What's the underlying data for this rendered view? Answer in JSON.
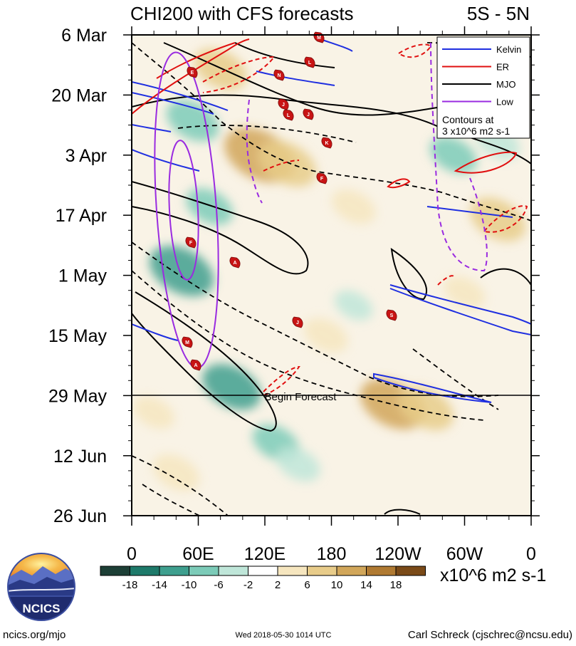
{
  "chart_data": {
    "type": "heatmap",
    "title": "CHI200 with CFS forecasts",
    "region": "5S - 5N",
    "x_axis": {
      "ticks": [
        "0",
        "60E",
        "120E",
        "180",
        "120W",
        "60W",
        "0"
      ],
      "values_deg_east": [
        0,
        60,
        120,
        180,
        240,
        300,
        360
      ]
    },
    "y_axis": {
      "ticks": [
        "6 Mar",
        "20 Mar",
        "3 Apr",
        "17 Apr",
        "1 May",
        "15 May",
        "29 May",
        "12 Jun",
        "26 Jun"
      ],
      "range": [
        "6 Mar",
        "26 Jun"
      ]
    },
    "forecast_line": {
      "label": "Begin Forecast",
      "date": "29 May"
    },
    "legend": {
      "placement": "top-right",
      "entries": [
        {
          "name": "Kelvin",
          "color": "#1f2fe0"
        },
        {
          "name": "ER",
          "color": "#e01010"
        },
        {
          "name": "MJO",
          "color": "#000000"
        },
        {
          "name": "Low",
          "color": "#9a2be0"
        }
      ],
      "note_line1": "Contours at",
      "note_line2": "3 x10^6 m2 s-1"
    },
    "colorbar": {
      "labels": [
        "-18",
        "-14",
        "-10",
        "-6",
        "-2",
        "2",
        "6",
        "10",
        "14",
        "18"
      ],
      "colors": [
        "#1d3f36",
        "#1e7a6a",
        "#3e9f8e",
        "#7ccbb8",
        "#bfe6d9",
        "#ffffff",
        "#f6e6bf",
        "#e8cc8a",
        "#d1a65a",
        "#b07a32",
        "#7a4a18"
      ],
      "units": "x10^6 m2 s-1"
    },
    "storm_labels": [
      "E",
      "M",
      "L",
      "N",
      "J",
      "L",
      "J",
      "K",
      "F",
      "F",
      "A",
      "J",
      "S",
      "M",
      "A"
    ],
    "heatmap_blobs": [
      {
        "lon": 45,
        "date_day": 55,
        "value": -12
      },
      {
        "lon": 55,
        "date_day": 20,
        "value": -8
      },
      {
        "lon": 90,
        "date_day": 82,
        "value": -10
      },
      {
        "lon": 70,
        "date_day": 40,
        "value": -6
      },
      {
        "lon": 130,
        "date_day": 95,
        "value": -6
      },
      {
        "lon": 150,
        "date_day": 100,
        "value": -5
      },
      {
        "lon": 290,
        "date_day": 28,
        "value": -6
      },
      {
        "lon": 330,
        "date_day": 25,
        "value": -5
      },
      {
        "lon": 200,
        "date_day": 63,
        "value": -3
      },
      {
        "lon": 115,
        "date_day": 28,
        "value": 14
      },
      {
        "lon": 140,
        "date_day": 30,
        "value": 10
      },
      {
        "lon": 80,
        "date_day": 8,
        "value": 8
      },
      {
        "lon": 235,
        "date_day": 86,
        "value": 12
      },
      {
        "lon": 265,
        "date_day": 87,
        "value": 9
      },
      {
        "lon": 330,
        "date_day": 43,
        "value": 9
      },
      {
        "lon": 40,
        "date_day": 102,
        "value": 6
      },
      {
        "lon": 175,
        "date_day": 70,
        "value": 5
      },
      {
        "lon": 200,
        "date_day": 40,
        "value": 5
      },
      {
        "lon": 300,
        "date_day": 60,
        "value": 4
      },
      {
        "lon": 20,
        "date_day": 88,
        "value": 4
      }
    ]
  },
  "footer": {
    "logo": "NCICS",
    "url": "ncics.org/mjo",
    "timestamp": "Wed 2018-05-30 1014 UTC",
    "author": "Carl Schreck (cjschrec@ncsu.edu)"
  }
}
